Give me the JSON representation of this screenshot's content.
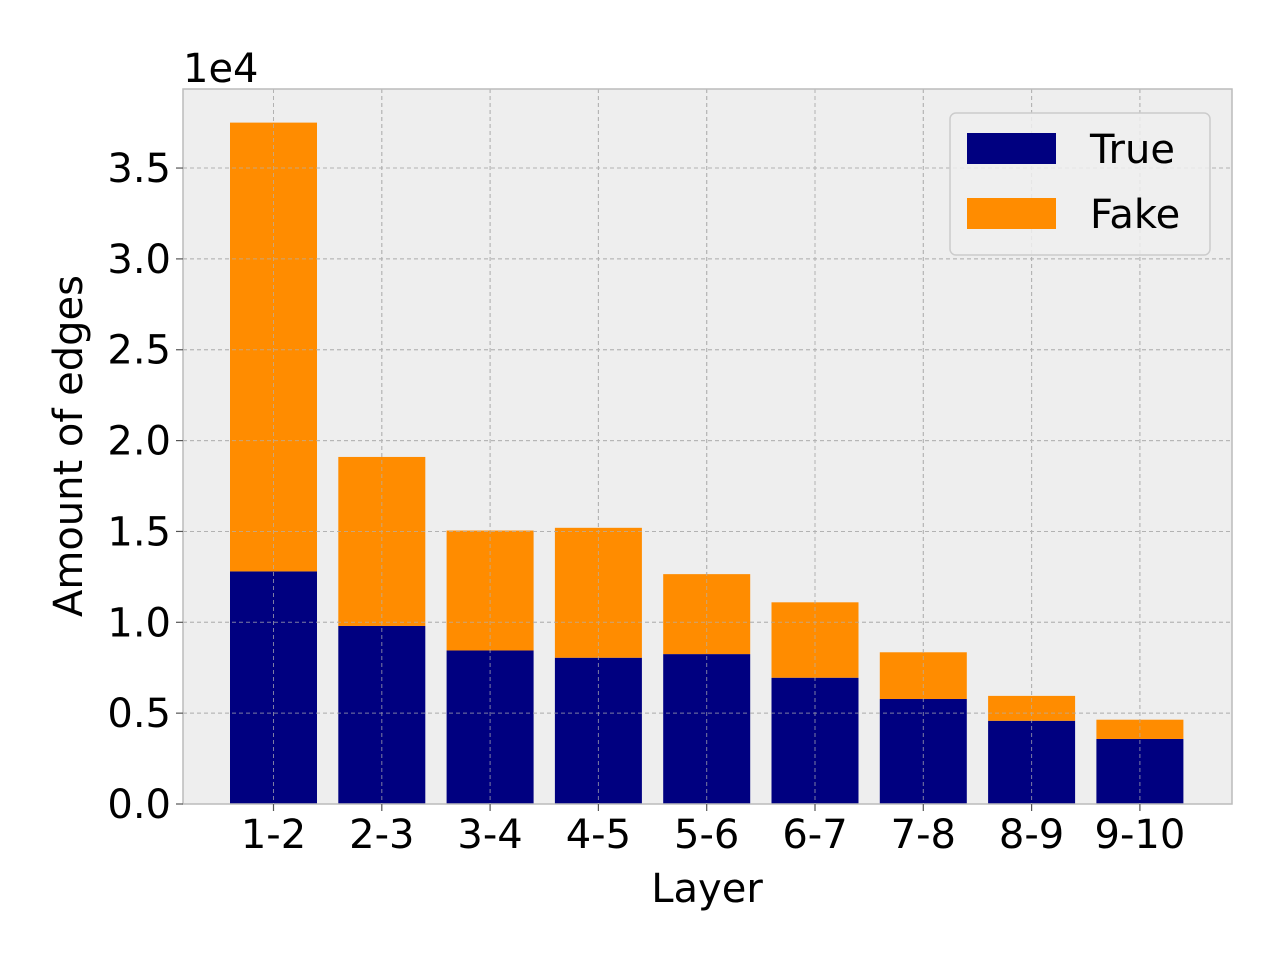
{
  "chart_data": {
    "type": "bar",
    "stacked": true,
    "xlabel": "Layer",
    "ylabel": "Amount of edges",
    "y_offset_label": "1e4",
    "categories": [
      "1-2",
      "2-3",
      "3-4",
      "4-5",
      "5-6",
      "6-7",
      "7-8",
      "8-9",
      "9-10"
    ],
    "series": [
      {
        "name": "True",
        "color": "#000080",
        "values": [
          12800,
          9800,
          8450,
          8050,
          8250,
          6950,
          5780,
          4580,
          3580
        ]
      },
      {
        "name": "Fake",
        "color": "#ff8c00",
        "values": [
          24700,
          9300,
          6600,
          7150,
          4400,
          4150,
          2570,
          1370,
          1060
        ]
      }
    ],
    "ylim": [
      0,
      39350
    ],
    "yticks": [
      0,
      5000,
      10000,
      15000,
      20000,
      25000,
      30000,
      35000
    ],
    "ytick_labels": [
      "0.0",
      "0.5",
      "1.0",
      "1.5",
      "2.0",
      "2.5",
      "3.0",
      "3.5"
    ],
    "grid": true,
    "legend_position": "top-right",
    "background": "#eeeeee"
  }
}
